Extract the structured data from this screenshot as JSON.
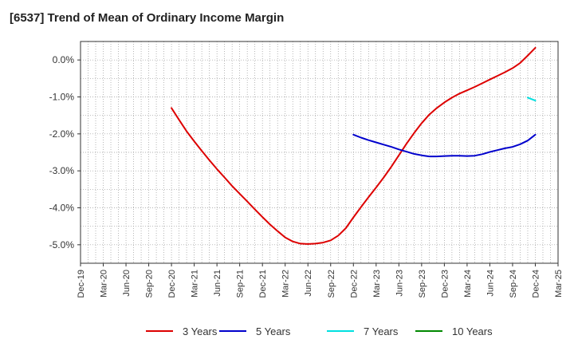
{
  "title": "[6537]  Trend of Mean of Ordinary Income Margin",
  "chart_data": {
    "type": "line",
    "title": "[6537]  Trend of Mean of Ordinary Income Margin",
    "xlabel": "",
    "ylabel": "",
    "x_tick_labels": [
      "Dec-19",
      "Mar-20",
      "Jun-20",
      "Sep-20",
      "Dec-20",
      "Mar-21",
      "Jun-21",
      "Sep-21",
      "Dec-21",
      "Mar-22",
      "Jun-22",
      "Sep-22",
      "Dec-22",
      "Mar-23",
      "Jun-23",
      "Sep-23",
      "Dec-23",
      "Mar-24",
      "Jun-24",
      "Sep-24",
      "Dec-24",
      "Mar-25"
    ],
    "y_tick_labels": [
      "0.0%",
      "-1.0%",
      "-2.0%",
      "-3.0%",
      "-4.0%",
      "-5.0%"
    ],
    "y_ticks": [
      0,
      -1,
      -2,
      -3,
      -4,
      -5
    ],
    "ylim": [
      -5.5,
      0.5
    ],
    "y_unit": "%",
    "grid": true,
    "legend_position": "bottom",
    "series": [
      {
        "name": "3 Years",
        "color": "#dd0000",
        "points": [
          [
            "Dec-20",
            -1.3
          ],
          [
            "Jan-21",
            -1.62
          ],
          [
            "Feb-21",
            -1.93
          ],
          [
            "Mar-21",
            -2.2
          ],
          [
            "Apr-21",
            -2.46
          ],
          [
            "May-21",
            -2.71
          ],
          [
            "Jun-21",
            -2.95
          ],
          [
            "Jul-21",
            -3.18
          ],
          [
            "Aug-21",
            -3.41
          ],
          [
            "Sep-21",
            -3.62
          ],
          [
            "Oct-21",
            -3.83
          ],
          [
            "Nov-21",
            -4.04
          ],
          [
            "Dec-21",
            -4.25
          ],
          [
            "Jan-22",
            -4.45
          ],
          [
            "Feb-22",
            -4.63
          ],
          [
            "Mar-22",
            -4.8
          ],
          [
            "Apr-22",
            -4.91
          ],
          [
            "May-22",
            -4.97
          ],
          [
            "Jun-22",
            -4.98
          ],
          [
            "Jul-22",
            -4.97
          ],
          [
            "Aug-22",
            -4.94
          ],
          [
            "Sep-22",
            -4.88
          ],
          [
            "Oct-22",
            -4.75
          ],
          [
            "Nov-22",
            -4.55
          ],
          [
            "Dec-22",
            -4.26
          ],
          [
            "Jan-23",
            -3.98
          ],
          [
            "Feb-23",
            -3.71
          ],
          [
            "Mar-23",
            -3.45
          ],
          [
            "Apr-23",
            -3.18
          ],
          [
            "May-23",
            -2.89
          ],
          [
            "Jun-23",
            -2.58
          ],
          [
            "Jul-23",
            -2.27
          ],
          [
            "Aug-23",
            -1.98
          ],
          [
            "Sep-23",
            -1.71
          ],
          [
            "Oct-23",
            -1.48
          ],
          [
            "Nov-23",
            -1.3
          ],
          [
            "Dec-23",
            -1.15
          ],
          [
            "Jan-24",
            -1.02
          ],
          [
            "Feb-24",
            -0.91
          ],
          [
            "Mar-24",
            -0.82
          ],
          [
            "Apr-24",
            -0.73
          ],
          [
            "May-24",
            -0.63
          ],
          [
            "Jun-24",
            -0.53
          ],
          [
            "Jul-24",
            -0.43
          ],
          [
            "Aug-24",
            -0.33
          ],
          [
            "Sep-24",
            -0.22
          ],
          [
            "Oct-24",
            -0.08
          ],
          [
            "Nov-24",
            0.12
          ],
          [
            "Dec-24",
            0.33
          ]
        ]
      },
      {
        "name": "5 Years",
        "color": "#0000cc",
        "points": [
          [
            "Dec-22",
            -2.02
          ],
          [
            "Jan-23",
            -2.1
          ],
          [
            "Feb-23",
            -2.17
          ],
          [
            "Mar-23",
            -2.23
          ],
          [
            "Apr-23",
            -2.29
          ],
          [
            "May-23",
            -2.35
          ],
          [
            "Jun-23",
            -2.42
          ],
          [
            "Jul-23",
            -2.48
          ],
          [
            "Aug-23",
            -2.54
          ],
          [
            "Sep-23",
            -2.58
          ],
          [
            "Oct-23",
            -2.61
          ],
          [
            "Nov-23",
            -2.61
          ],
          [
            "Dec-23",
            -2.6
          ],
          [
            "Jan-24",
            -2.59
          ],
          [
            "Feb-24",
            -2.59
          ],
          [
            "Mar-24",
            -2.6
          ],
          [
            "Apr-24",
            -2.59
          ],
          [
            "May-24",
            -2.55
          ],
          [
            "Jun-24",
            -2.49
          ],
          [
            "Jul-24",
            -2.44
          ],
          [
            "Aug-24",
            -2.39
          ],
          [
            "Sep-24",
            -2.35
          ],
          [
            "Oct-24",
            -2.28
          ],
          [
            "Nov-24",
            -2.18
          ],
          [
            "Dec-24",
            -2.02
          ]
        ]
      },
      {
        "name": "7 Years",
        "color": "#00e0e0",
        "points": [
          [
            "Nov-24",
            -1.02
          ],
          [
            "Dec-24",
            -1.1
          ]
        ]
      },
      {
        "name": "10 Years",
        "color": "#008800",
        "points": []
      }
    ]
  }
}
